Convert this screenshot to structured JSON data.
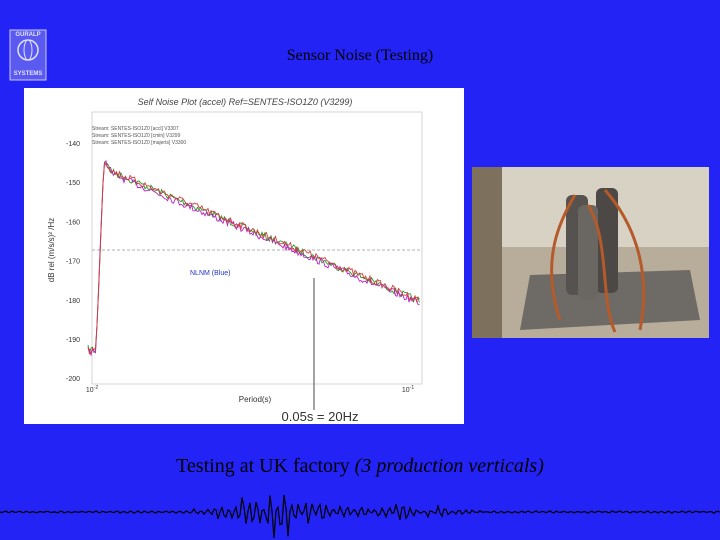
{
  "logo": {
    "line1": "GURALP",
    "line2": "SYSTEMS"
  },
  "header": {
    "title": "Sensor Noise (Testing)"
  },
  "plot": {
    "title": "Self Noise Plot (accel)  Ref=SENTES-ISO1Z0 (V3299)",
    "legend": [
      "Stream: SENTES-ISO1Z0 [accl] V3307",
      "Stream: SENTES-ISO1Z0 [cmin] V3299",
      "Stream: SENTES-ISO1Z0 [majerts] V3300"
    ],
    "y_label": "dB rel (m/s/s)² /Hz",
    "y_ticks": [
      "-140",
      "-150",
      "-160",
      "-170",
      "-180",
      "-190",
      "-200"
    ],
    "x_ticks": [
      {
        "base": "10",
        "exp": "-2"
      },
      {
        "base": "10",
        "exp": "-1"
      }
    ],
    "x_label": "Period(s)",
    "annotation": "NLNM (Blue)",
    "marker": "0.05s = 20Hz"
  },
  "caption": {
    "text": "Testing at UK factory ",
    "emphasis": "(3 production verticals)"
  }
}
